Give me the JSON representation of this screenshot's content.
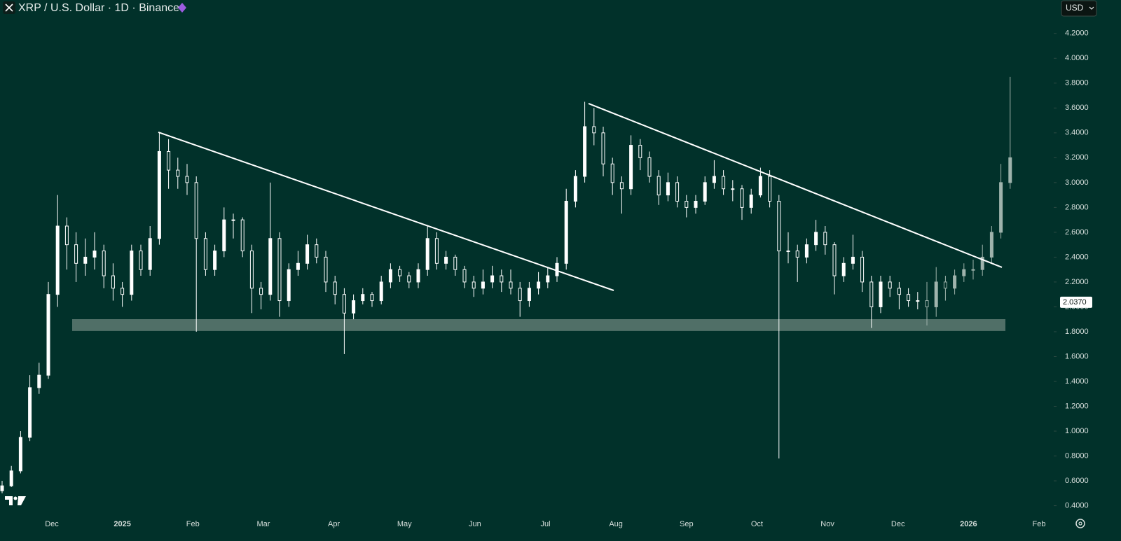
{
  "header": {
    "title": "XRP / U.S. Dollar · 1D · Binance",
    "currency_button": "USD"
  },
  "chart_data": {
    "type": "candlestick",
    "x_labels": [
      "Dec",
      "2025",
      "Feb",
      "Mar",
      "Apr",
      "May",
      "Jun",
      "Jul",
      "Aug",
      "Sep",
      "Oct",
      "Nov",
      "Dec",
      "2026",
      "Feb"
    ],
    "ylim": [
      0.33,
      4.3
    ],
    "yticks": [
      {
        "value": 0.4,
        "label": "0.4000"
      },
      {
        "value": 0.6,
        "label": "0.6000"
      },
      {
        "value": 0.8,
        "label": "0.8000"
      },
      {
        "value": 1.0,
        "label": "1.0000"
      },
      {
        "value": 1.2,
        "label": "1.2000"
      },
      {
        "value": 1.4,
        "label": "1.4000"
      },
      {
        "value": 1.6,
        "label": "1.6000"
      },
      {
        "value": 1.8,
        "label": "1.8000"
      },
      {
        "value": 2.0,
        "label": "2.0000"
      },
      {
        "value": 2.2,
        "label": "2.2000"
      },
      {
        "value": 2.4,
        "label": "2.4000"
      },
      {
        "value": 2.6,
        "label": "2.6000"
      },
      {
        "value": 2.8,
        "label": "2.8000"
      },
      {
        "value": 3.0,
        "label": "3.0000"
      },
      {
        "value": 3.2,
        "label": "3.2000"
      },
      {
        "value": 3.4,
        "label": "3.4000"
      },
      {
        "value": 3.6,
        "label": "3.6000"
      },
      {
        "value": 3.8,
        "label": "3.8000"
      },
      {
        "value": 4.0,
        "label": "4.0000"
      },
      {
        "value": 4.2,
        "label": "4.2000"
      }
    ],
    "last_price": {
      "value": 2.037,
      "label": "2.0370"
    },
    "series": [
      {
        "color": "#ffffff",
        "candles": [
          [
            0.52,
            0.6,
            0.5,
            0.56
          ],
          [
            0.56,
            0.72,
            0.55,
            0.68
          ],
          [
            0.68,
            1.0,
            0.66,
            0.95
          ],
          [
            0.95,
            1.45,
            0.92,
            1.35
          ],
          [
            1.35,
            1.55,
            1.3,
            1.45
          ],
          [
            1.45,
            2.2,
            1.42,
            2.1
          ],
          [
            2.1,
            2.9,
            2.0,
            2.65
          ],
          [
            2.65,
            2.72,
            2.3,
            2.5
          ],
          [
            2.5,
            2.6,
            2.2,
            2.35
          ],
          [
            2.35,
            2.55,
            2.25,
            2.4
          ],
          [
            2.4,
            2.6,
            2.3,
            2.45
          ],
          [
            2.45,
            2.5,
            2.15,
            2.25
          ],
          [
            2.25,
            2.35,
            2.05,
            2.15
          ],
          [
            2.15,
            2.2,
            2.0,
            2.1
          ],
          [
            2.1,
            2.5,
            2.05,
            2.45
          ],
          [
            2.45,
            2.5,
            2.25,
            2.3
          ],
          [
            2.3,
            2.65,
            2.25,
            2.55
          ],
          [
            2.55,
            3.4,
            2.5,
            3.25
          ],
          [
            3.25,
            3.35,
            2.95,
            3.1
          ],
          [
            3.1,
            3.2,
            2.95,
            3.05
          ],
          [
            3.05,
            3.15,
            2.9,
            3.0
          ],
          [
            3.0,
            3.05,
            1.8,
            2.55
          ],
          [
            2.55,
            2.6,
            2.25,
            2.3
          ],
          [
            2.3,
            2.5,
            2.25,
            2.45
          ],
          [
            2.45,
            2.8,
            2.4,
            2.7
          ],
          [
            2.7,
            2.75,
            2.55,
            2.7
          ],
          [
            2.7,
            2.72,
            2.4,
            2.45
          ],
          [
            2.45,
            2.5,
            1.95,
            2.15
          ],
          [
            2.15,
            2.2,
            1.98,
            2.1
          ],
          [
            2.1,
            3.0,
            2.05,
            2.55
          ],
          [
            2.55,
            2.6,
            1.92,
            2.05
          ],
          [
            2.05,
            2.35,
            2.0,
            2.3
          ],
          [
            2.3,
            2.45,
            2.25,
            2.35
          ],
          [
            2.35,
            2.58,
            2.3,
            2.5
          ],
          [
            2.5,
            2.55,
            2.35,
            2.4
          ],
          [
            2.4,
            2.45,
            2.12,
            2.2
          ],
          [
            2.2,
            2.25,
            2.02,
            2.1
          ],
          [
            2.1,
            2.15,
            1.62,
            1.95
          ],
          [
            1.95,
            2.1,
            1.9,
            2.05
          ],
          [
            2.05,
            2.15,
            2.02,
            2.1
          ],
          [
            2.1,
            2.12,
            2.0,
            2.05
          ],
          [
            2.05,
            2.25,
            2.02,
            2.2
          ],
          [
            2.2,
            2.35,
            2.15,
            2.3
          ],
          [
            2.3,
            2.33,
            2.2,
            2.25
          ],
          [
            2.25,
            2.28,
            2.15,
            2.2
          ],
          [
            2.2,
            2.35,
            2.15,
            2.3
          ],
          [
            2.3,
            2.65,
            2.25,
            2.55
          ],
          [
            2.55,
            2.6,
            2.3,
            2.35
          ],
          [
            2.35,
            2.45,
            2.3,
            2.4
          ],
          [
            2.4,
            2.42,
            2.25,
            2.3
          ],
          [
            2.3,
            2.33,
            2.15,
            2.2
          ],
          [
            2.2,
            2.25,
            2.08,
            2.15
          ],
          [
            2.15,
            2.3,
            2.1,
            2.2
          ],
          [
            2.2,
            2.33,
            2.15,
            2.25
          ],
          [
            2.25,
            2.3,
            2.12,
            2.2
          ],
          [
            2.2,
            2.3,
            2.1,
            2.15
          ],
          [
            2.15,
            2.2,
            1.92,
            2.05
          ],
          [
            2.05,
            2.2,
            2.0,
            2.15
          ],
          [
            2.15,
            2.28,
            2.1,
            2.2
          ],
          [
            2.2,
            2.32,
            2.15,
            2.25
          ],
          [
            2.25,
            2.4,
            2.2,
            2.35
          ],
          [
            2.35,
            2.95,
            2.3,
            2.85
          ],
          [
            2.85,
            3.1,
            2.8,
            3.05
          ],
          [
            3.05,
            3.65,
            3.0,
            3.45
          ],
          [
            3.45,
            3.6,
            3.3,
            3.4
          ],
          [
            3.4,
            3.45,
            3.05,
            3.15
          ],
          [
            3.15,
            3.2,
            2.9,
            3.0
          ],
          [
            3.0,
            3.05,
            2.75,
            2.95
          ],
          [
            2.95,
            3.38,
            2.9,
            3.3
          ],
          [
            3.3,
            3.35,
            3.1,
            3.2
          ],
          [
            3.2,
            3.25,
            3.0,
            3.05
          ],
          [
            3.05,
            3.1,
            2.82,
            2.9
          ],
          [
            2.9,
            3.08,
            2.85,
            3.0
          ],
          [
            3.0,
            3.05,
            2.8,
            2.85
          ],
          [
            2.85,
            2.9,
            2.72,
            2.8
          ],
          [
            2.8,
            2.9,
            2.75,
            2.85
          ],
          [
            2.85,
            3.05,
            2.82,
            3.0
          ],
          [
            3.0,
            3.18,
            2.95,
            3.05
          ],
          [
            3.05,
            3.1,
            2.9,
            2.95
          ],
          [
            2.95,
            3.02,
            2.85,
            2.95
          ],
          [
            2.95,
            2.98,
            2.7,
            2.8
          ],
          [
            2.8,
            2.95,
            2.75,
            2.9
          ],
          [
            2.9,
            3.12,
            2.88,
            3.05
          ],
          [
            3.05,
            3.1,
            2.8,
            2.85
          ],
          [
            2.85,
            2.9,
            0.78,
            2.45
          ],
          [
            2.45,
            2.6,
            2.35,
            2.45
          ],
          [
            2.45,
            2.5,
            2.2,
            2.4
          ],
          [
            2.4,
            2.55,
            2.35,
            2.5
          ],
          [
            2.5,
            2.7,
            2.45,
            2.6
          ],
          [
            2.6,
            2.65,
            2.42,
            2.5
          ],
          [
            2.5,
            2.52,
            2.1,
            2.25
          ],
          [
            2.25,
            2.4,
            2.2,
            2.35
          ],
          [
            2.35,
            2.58,
            2.3,
            2.4
          ],
          [
            2.4,
            2.45,
            2.12,
            2.2
          ],
          [
            2.2,
            2.25,
            1.83,
            2.0
          ],
          [
            2.0,
            2.25,
            1.95,
            2.2
          ],
          [
            2.2,
            2.25,
            2.08,
            2.15
          ],
          [
            2.15,
            2.2,
            1.98,
            2.1
          ],
          [
            2.1,
            2.15,
            2.0,
            2.05
          ],
          [
            2.05,
            2.12,
            1.98,
            2.05
          ]
        ]
      },
      {
        "color": "#9fb3ac",
        "candles": [
          [
            2.05,
            2.2,
            1.85,
            2.0
          ],
          [
            2.0,
            2.32,
            1.92,
            2.2
          ],
          [
            2.2,
            2.25,
            2.05,
            2.15
          ],
          [
            2.15,
            2.3,
            2.1,
            2.25
          ],
          [
            2.25,
            2.35,
            2.2,
            2.3
          ],
          [
            2.3,
            2.38,
            2.22,
            2.3
          ],
          [
            2.3,
            2.5,
            2.25,
            2.4
          ],
          [
            2.4,
            2.65,
            2.35,
            2.6
          ],
          [
            2.6,
            3.15,
            2.55,
            3.0
          ],
          [
            3.0,
            3.85,
            2.95,
            3.2
          ]
        ]
      }
    ],
    "trendlines": [
      {
        "from": 3.405,
        "to": 2.132,
        "color": "#ffffff"
      },
      {
        "from": 3.636,
        "to": 2.318,
        "color": "#ffffff"
      }
    ],
    "support_zone": {
      "low": 1.806,
      "high": 1.901,
      "color": "#5e7a72"
    }
  }
}
